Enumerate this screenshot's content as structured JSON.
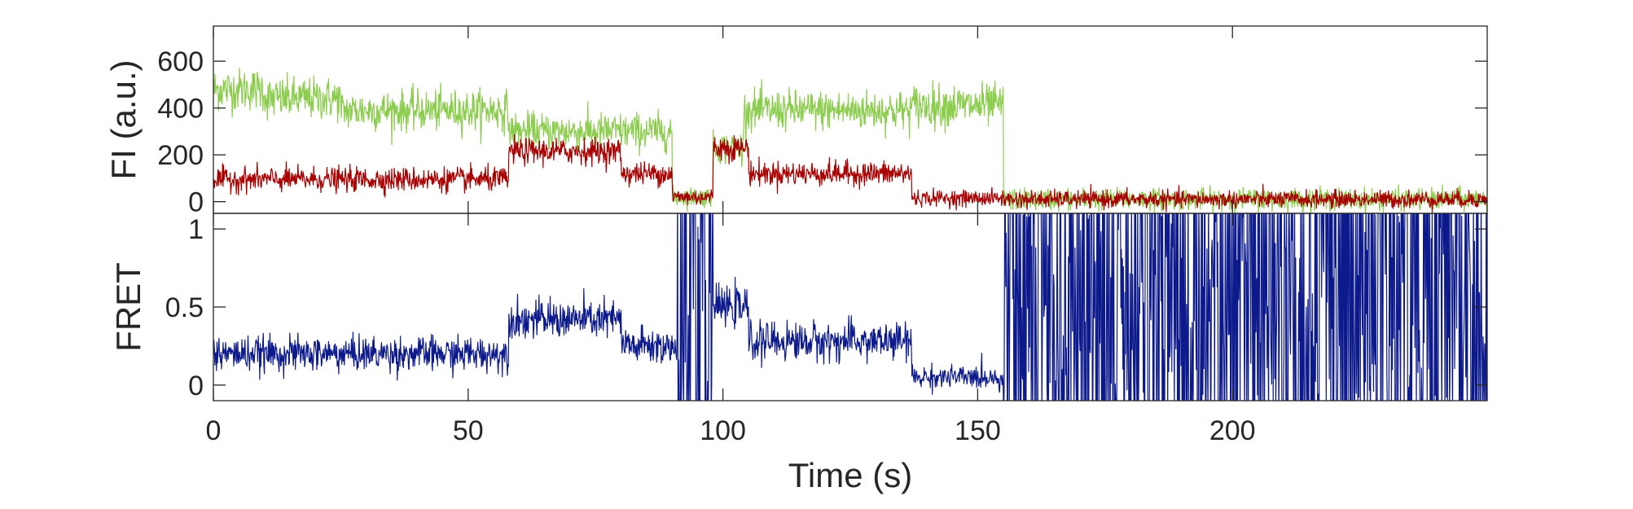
{
  "chart_data": [
    {
      "type": "line",
      "ylabel": "FI (a.u.)",
      "xlim": [
        0,
        250
      ],
      "ylim": [
        -50,
        750
      ],
      "yticks": [
        0,
        200,
        400,
        600
      ],
      "colors": {
        "donor": "#8ccc4e",
        "acceptor": "#a80000"
      },
      "series": [
        {
          "key": "donor",
          "segments": [
            {
              "x0": 0,
              "x1": 10,
              "mean": 480,
              "noise": 75
            },
            {
              "x0": 10,
              "x1": 25,
              "mean": 440,
              "noise": 75
            },
            {
              "x0": 25,
              "x1": 58,
              "mean": 390,
              "noise": 70
            },
            {
              "x0": 58,
              "x1": 90,
              "mean": 300,
              "noise": 65
            },
            {
              "x0": 90,
              "x1": 98,
              "mean": 20,
              "noise": 35
            },
            {
              "x0": 98,
              "x1": 104,
              "mean": 230,
              "noise": 55
            },
            {
              "x0": 104,
              "x1": 137,
              "mean": 390,
              "noise": 70
            },
            {
              "x0": 137,
              "x1": 155,
              "mean": 410,
              "noise": 75
            },
            {
              "x0": 155,
              "x1": 250,
              "mean": 10,
              "noise": 38
            }
          ]
        },
        {
          "key": "acceptor",
          "segments": [
            {
              "x0": 0,
              "x1": 58,
              "mean": 95,
              "noise": 42
            },
            {
              "x0": 58,
              "x1": 80,
              "mean": 215,
              "noise": 45
            },
            {
              "x0": 80,
              "x1": 90,
              "mean": 120,
              "noise": 40
            },
            {
              "x0": 90,
              "x1": 98,
              "mean": 20,
              "noise": 30
            },
            {
              "x0": 98,
              "x1": 105,
              "mean": 230,
              "noise": 45
            },
            {
              "x0": 105,
              "x1": 137,
              "mean": 120,
              "noise": 42
            },
            {
              "x0": 137,
              "x1": 155,
              "mean": 15,
              "noise": 28
            },
            {
              "x0": 155,
              "x1": 250,
              "mean": 10,
              "noise": 30
            }
          ]
        }
      ]
    },
    {
      "type": "line",
      "xlabel": "Time (s)",
      "ylabel": "FRET",
      "xlim": [
        0,
        250
      ],
      "ylim": [
        -0.1,
        1.1
      ],
      "xticks": [
        0,
        50,
        100,
        150,
        200
      ],
      "yticks": [
        0,
        0.5,
        1
      ],
      "ytick_labels": [
        "0",
        "0.5",
        "1"
      ],
      "colors": {
        "fret": "#0d1a8c"
      },
      "series": [
        {
          "key": "fret",
          "segments": [
            {
              "x0": 0,
              "x1": 58,
              "mean": 0.2,
              "noise": 0.09
            },
            {
              "x0": 58,
              "x1": 80,
              "mean": 0.42,
              "noise": 0.1
            },
            {
              "x0": 80,
              "x1": 91,
              "mean": 0.25,
              "noise": 0.1
            },
            {
              "x0": 91,
              "x1": 98,
              "mean": 0.5,
              "noise": 0.9
            },
            {
              "x0": 98,
              "x1": 105,
              "mean": 0.5,
              "noise": 0.1
            },
            {
              "x0": 105,
              "x1": 137,
              "mean": 0.28,
              "noise": 0.1
            },
            {
              "x0": 137,
              "x1": 155,
              "mean": 0.05,
              "noise": 0.06
            },
            {
              "x0": 155,
              "x1": 250,
              "mean": 0.5,
              "noise": 1.0
            }
          ]
        }
      ]
    }
  ]
}
